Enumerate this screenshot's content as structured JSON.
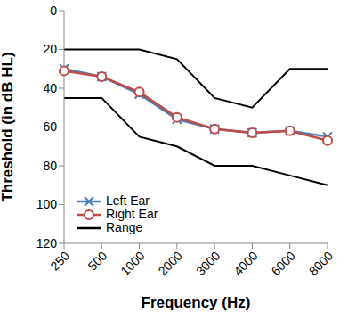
{
  "chart_data": {
    "type": "line",
    "x_label": "Frequency (Hz)",
    "y_label": "Threshold (in dB HL)",
    "categories": [
      "250",
      "500",
      "1000",
      "2000",
      "3000",
      "4000",
      "6000",
      "8000"
    ],
    "ylim": [
      120,
      0
    ],
    "yticks": [
      0,
      20,
      40,
      60,
      80,
      100,
      120
    ],
    "grid": false,
    "legend": "lower left",
    "series": [
      {
        "name": "Left Ear",
        "color": "#4a7ebb",
        "marker": "x",
        "values": [
          30,
          34,
          43,
          56,
          61,
          63,
          62,
          65
        ]
      },
      {
        "name": "Right Ear",
        "color": "#be4b48",
        "marker": "circle",
        "values": [
          31,
          34,
          42,
          55,
          61,
          63,
          62,
          67
        ]
      },
      {
        "name": "Range",
        "color": "#000000",
        "marker": "none",
        "upper": [
          20,
          20,
          20,
          25,
          45,
          50,
          30,
          30
        ],
        "lower": [
          45,
          45,
          65,
          70,
          80,
          80,
          85,
          90
        ]
      }
    ]
  }
}
